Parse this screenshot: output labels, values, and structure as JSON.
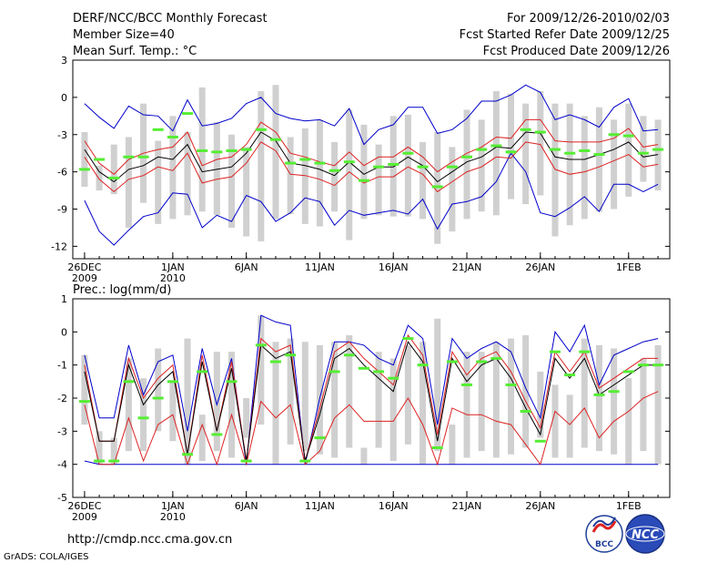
{
  "header": {
    "title": "DERF/NCC/BCC Monthly Forecast",
    "member_size": "Member Size=40",
    "variable1": "Mean Surf. Temp.: °C",
    "period": "For 2009/12/26-2010/02/03",
    "started": "Fcst Started Refer Date 2009/12/25",
    "produced": "Fcst Produced Date 2009/12/26"
  },
  "footer": {
    "url": "http://cmdp.ncc.cma.gov.cn",
    "grads": "GrADS: COLA/IGES",
    "logo_bcc": "BCC",
    "logo_ncc": "NCC"
  },
  "colors": {
    "box": "#d0d0d0",
    "median": "#55ee33",
    "mean": "#000000",
    "spread": "#dd2222",
    "envelope": "#0000cc",
    "frame": "#000000"
  },
  "chart_data": [
    {
      "type": "line",
      "title": "Mean Surf. Temp.: °C",
      "ylim": [
        -13,
        3
      ],
      "yticks": [
        3,
        0,
        -3,
        -6,
        -9,
        -12
      ],
      "day_count": 40,
      "xticks": [
        {
          "day": 0,
          "label": "26DEC",
          "sub": "2009"
        },
        {
          "day": 6,
          "label": "1JAN",
          "sub": "2010"
        },
        {
          "day": 11,
          "label": "6JAN",
          "sub": ""
        },
        {
          "day": 16,
          "label": "11JAN",
          "sub": ""
        },
        {
          "day": 21,
          "label": "16JAN",
          "sub": ""
        },
        {
          "day": 26,
          "label": "21JAN",
          "sub": ""
        },
        {
          "day": 31,
          "label": "26JAN",
          "sub": ""
        },
        {
          "day": 37,
          "label": "1FEB",
          "sub": ""
        }
      ],
      "box_low": [
        -7.2,
        -7.5,
        -7.8,
        -10.5,
        -8.5,
        -10.2,
        -9.8,
        -9.5,
        -9.2,
        -9.5,
        -10.5,
        -11.2,
        -11.6,
        -9.8,
        -9.4,
        -10.2,
        -10.4,
        -9.2,
        -11.5,
        -9.8,
        -9.5,
        -9.6,
        -9.6,
        -9.8,
        -11.8,
        -10.8,
        -9.8,
        -9.2,
        -9.5,
        -8.2,
        -8.6,
        -7.9,
        -11.2,
        -10.3,
        -9.8,
        -9.2,
        -9.0,
        -8.0,
        -6.8,
        -7.5
      ],
      "box_high": [
        -2.8,
        -5.5,
        -3.8,
        -3.2,
        -0.5,
        -3.5,
        -1.5,
        -2.8,
        0.8,
        -2.0,
        -3.0,
        -4.0,
        0.5,
        1.0,
        -3.2,
        -2.5,
        -1.8,
        -3.6,
        -1.0,
        -2.2,
        -3.8,
        -1.5,
        -1.4,
        -3.6,
        -2.8,
        -4.0,
        -1.0,
        -1.8,
        0.5,
        0.3,
        -0.5,
        0.5,
        -0.5,
        -0.5,
        -1.5,
        -0.8,
        -1.8,
        -0.5,
        -1.5,
        -1.8
      ],
      "median": [
        -5.8,
        -5.0,
        -6.5,
        -4.8,
        -4.8,
        -2.6,
        -3.2,
        -1.3,
        -4.3,
        -4.4,
        -4.3,
        -4.2,
        -2.6,
        -3.4,
        -5.3,
        -5.0,
        -5.3,
        -5.9,
        -5.2,
        -6.7,
        -5.6,
        -5.4,
        -4.5,
        -5.6,
        -7.2,
        -5.6,
        -4.8,
        -4.2,
        -3.9,
        -4.4,
        -2.6,
        -2.8,
        -4.2,
        -4.5,
        -4.3,
        -4.6,
        -3.0,
        -3.1,
        -4.5,
        -4.2
      ],
      "mean": [
        -4.2,
        -6.0,
        -6.8,
        -5.8,
        -5.5,
        -4.8,
        -5.0,
        -3.8,
        -6.0,
        -5.8,
        -5.6,
        -4.5,
        -2.8,
        -3.5,
        -5.3,
        -5.5,
        -5.8,
        -6.3,
        -5.2,
        -6.2,
        -5.6,
        -5.6,
        -4.8,
        -5.5,
        -6.8,
        -6.0,
        -5.2,
        -4.8,
        -4.0,
        -4.1,
        -2.8,
        -2.9,
        -4.8,
        -5.0,
        -5.0,
        -4.6,
        -4.2,
        -3.6,
        -4.8,
        -4.6
      ],
      "upper_red": [
        -3.5,
        -5.3,
        -6.2,
        -5.0,
        -4.5,
        -4.2,
        -4.0,
        -2.8,
        -5.5,
        -5.0,
        -4.8,
        -3.8,
        -2.0,
        -2.8,
        -4.5,
        -4.8,
        -5.2,
        -5.5,
        -4.4,
        -5.5,
        -4.8,
        -4.8,
        -4.0,
        -4.8,
        -6.0,
        -5.2,
        -4.5,
        -4.0,
        -3.2,
        -3.3,
        -1.8,
        -1.8,
        -3.5,
        -3.6,
        -3.6,
        -3.6,
        -3.3,
        -2.5,
        -4.0,
        -3.8
      ],
      "lower_red": [
        -4.8,
        -6.6,
        -7.6,
        -6.6,
        -6.3,
        -5.6,
        -5.9,
        -4.5,
        -6.9,
        -6.6,
        -6.4,
        -5.3,
        -3.6,
        -4.3,
        -6.2,
        -6.3,
        -6.6,
        -7.1,
        -6.0,
        -6.9,
        -6.4,
        -6.4,
        -5.6,
        -6.2,
        -7.6,
        -6.8,
        -6.0,
        -5.6,
        -4.8,
        -4.9,
        -3.6,
        -3.8,
        -5.8,
        -6.2,
        -6.0,
        -5.6,
        -5.1,
        -4.6,
        -5.6,
        -5.4
      ],
      "upper_blue": [
        -0.5,
        -1.6,
        -2.5,
        -0.7,
        -1.4,
        -1.5,
        -2.7,
        -0.2,
        -2.3,
        -2.1,
        -1.7,
        -0.5,
        0.0,
        -1.3,
        -1.7,
        -1.9,
        -1.8,
        -2.3,
        -0.9,
        -3.8,
        -2.6,
        -2.2,
        -0.8,
        -0.8,
        -2.9,
        -2.6,
        -1.7,
        -0.3,
        -0.3,
        0.2,
        1.0,
        0.4,
        -1.8,
        -1.4,
        -1.8,
        -2.4,
        -0.8,
        -0.1,
        -2.7,
        -2.6
      ],
      "lower_blue": [
        -8.3,
        -10.8,
        -11.9,
        -10.7,
        -9.6,
        -9.3,
        -7.7,
        -7.8,
        -10.5,
        -9.5,
        -10.0,
        -7.9,
        -8.4,
        -10.0,
        -9.3,
        -8.1,
        -8.4,
        -10.3,
        -9.1,
        -9.5,
        -9.3,
        -9.1,
        -9.4,
        -8.2,
        -10.6,
        -8.6,
        -8.4,
        -8.0,
        -6.8,
        -4.5,
        -6.0,
        -9.3,
        -9.6,
        -8.9,
        -8.0,
        -9.2,
        -7.0,
        -7.0,
        -7.6,
        -7.0
      ]
    },
    {
      "type": "line",
      "title": "Prec.: log(mm/d)",
      "ylim": [
        -5,
        1
      ],
      "yticks": [
        1,
        0,
        -1,
        -2,
        -3,
        -4,
        -5
      ],
      "day_count": 40,
      "xticks": [
        {
          "day": 0,
          "label": "26DEC",
          "sub": "2009"
        },
        {
          "day": 6,
          "label": "1JAN",
          "sub": "2010"
        },
        {
          "day": 11,
          "label": "6JAN",
          "sub": ""
        },
        {
          "day": 16,
          "label": "11JAN",
          "sub": ""
        },
        {
          "day": 21,
          "label": "16JAN",
          "sub": ""
        },
        {
          "day": 26,
          "label": "21JAN",
          "sub": ""
        },
        {
          "day": 31,
          "label": "26JAN",
          "sub": ""
        },
        {
          "day": 37,
          "label": "1FEB",
          "sub": ""
        }
      ],
      "box_low": [
        -2.8,
        -4.0,
        -4.0,
        -3.6,
        -3.6,
        -3.0,
        -3.3,
        -4.0,
        -3.9,
        -3.6,
        -3.8,
        -3.2,
        -2.8,
        -4.0,
        -3.4,
        -3.6,
        -3.7,
        -3.8,
        -3.5,
        -4.0,
        -3.5,
        -3.9,
        -3.4,
        -4.0,
        -3.6,
        -4.0,
        -3.8,
        -3.6,
        -3.8,
        -3.7,
        -3.5,
        -3.2,
        -3.8,
        -3.8,
        -3.5,
        -3.6,
        -3.7,
        -4.0,
        -3.6,
        -4.0
      ],
      "box_high": [
        -0.7,
        -3.0,
        -3.2,
        -0.8,
        -1.4,
        -0.5,
        -1.5,
        -0.2,
        -2.5,
        -0.6,
        -0.6,
        -2.0,
        0.5,
        -0.3,
        -0.2,
        -0.3,
        -0.4,
        -0.3,
        -0.1,
        -3.5,
        -0.6,
        -0.8,
        -0.4,
        -0.3,
        0.4,
        -2.8,
        -0.6,
        -0.6,
        -0.3,
        -0.2,
        -0.1,
        -1.2,
        -1.6,
        -1.9,
        -0.2,
        -0.4,
        -0.5,
        -1.4,
        -0.8,
        -0.4
      ],
      "median": [
        -2.1,
        -3.9,
        -3.9,
        -1.5,
        -2.6,
        -2.0,
        -1.5,
        -3.7,
        -1.2,
        -3.1,
        -1.5,
        -3.9,
        -0.4,
        -0.9,
        -0.7,
        -3.9,
        -3.2,
        -1.2,
        -0.7,
        -1.1,
        -1.2,
        -1.4,
        -0.2,
        -1.0,
        -3.5,
        -0.9,
        -1.6,
        -0.9,
        -0.8,
        -1.6,
        -2.4,
        -3.3,
        -0.6,
        -1.3,
        -0.6,
        -1.9,
        -1.8,
        -1.2,
        -1.0,
        -1.0
      ],
      "mean": [
        -1.2,
        -3.3,
        -3.3,
        -1.0,
        -2.2,
        -1.6,
        -1.2,
        -3.7,
        -0.9,
        -3.0,
        -1.1,
        -3.9,
        -0.4,
        -0.8,
        -0.6,
        -3.9,
        -2.5,
        -0.8,
        -0.5,
        -1.0,
        -1.4,
        -1.8,
        -0.3,
        -0.9,
        -3.3,
        -0.8,
        -1.5,
        -1.0,
        -0.8,
        -1.4,
        -2.3,
        -3.1,
        -0.8,
        -1.4,
        -0.8,
        -1.9,
        -1.6,
        -1.3,
        -1.0,
        -1.0
      ],
      "upper_red": [
        -1.0,
        -3.3,
        -3.3,
        -0.8,
        -2.0,
        -1.4,
        -1.0,
        -3.7,
        -0.7,
        -3.0,
        -0.9,
        -3.9,
        -0.2,
        -0.6,
        -0.4,
        -3.9,
        -2.3,
        -0.6,
        -0.3,
        -0.8,
        -1.2,
        -1.6,
        -0.1,
        -0.7,
        -3.1,
        -0.6,
        -1.3,
        -0.8,
        -0.6,
        -1.2,
        -2.1,
        -2.9,
        -0.6,
        -1.2,
        -0.6,
        -1.7,
        -1.4,
        -1.1,
        -0.8,
        -0.8
      ],
      "lower_red": [
        -2.2,
        -4.0,
        -4.0,
        -2.6,
        -3.9,
        -2.8,
        -2.5,
        -4.0,
        -2.8,
        -4.0,
        -2.5,
        -4.0,
        -2.1,
        -2.6,
        -2.2,
        -4.0,
        -3.6,
        -2.6,
        -2.2,
        -2.7,
        -2.7,
        -2.7,
        -2.0,
        -2.8,
        -4.0,
        -2.3,
        -2.5,
        -2.5,
        -2.7,
        -2.8,
        -3.4,
        -4.0,
        -2.4,
        -2.8,
        -2.3,
        -3.2,
        -2.7,
        -2.4,
        -2.0,
        -1.8
      ],
      "upper_blue": [
        -0.7,
        -2.6,
        -2.6,
        -0.4,
        -1.9,
        -0.9,
        -0.7,
        -3.0,
        -0.5,
        -2.2,
        -0.8,
        -4.0,
        0.5,
        0.3,
        0.2,
        -4.0,
        -2.0,
        -0.3,
        -0.3,
        -0.4,
        -0.8,
        -1.0,
        0.2,
        -0.2,
        -2.8,
        -0.2,
        -0.8,
        -0.5,
        -0.3,
        -0.6,
        -1.7,
        -2.6,
        0.0,
        -0.6,
        0.2,
        -1.6,
        -0.7,
        -0.5,
        -0.3,
        -0.2
      ],
      "lower_blue": [
        -3.9,
        -4.0,
        -4.0,
        -4.0,
        -4.0,
        -4.0,
        -4.0,
        -4.0,
        -4.0,
        -4.0,
        -4.0,
        -4.0,
        -4.0,
        -4.0,
        -4.0,
        -4.0,
        -4.0,
        -4.0,
        -4.0,
        -4.0,
        -4.0,
        -4.0,
        -4.0,
        -4.0,
        -4.0,
        -4.0,
        -4.0,
        -4.0,
        -4.0,
        -4.0,
        -4.0,
        -4.0,
        -4.0,
        -4.0,
        -4.0,
        -4.0,
        -4.0,
        -4.0,
        -4.0,
        -4.0
      ]
    }
  ]
}
